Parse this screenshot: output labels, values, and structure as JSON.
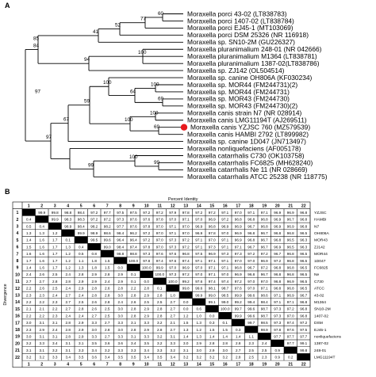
{
  "panel_a_label": "A",
  "panel_b_label": "B",
  "tree": {
    "taxa": [
      "Moraxella porci 43-02 (LT838783)",
      "Moraxella porci 1407-02 (LT838784)",
      "Moraxella porci EJ45-1 (MT103069)",
      "Moraxella porci DSM 25326 (NR 116918)",
      "Moraxella sp. SN10-2M (GU226327)",
      "Moraxella pluranimalium 248-01 (NR 042666)",
      "Moraxella pluranimalium M1364 (LT838781)",
      "Moraxella pluranimalium 1387-02(LT838786)",
      "Moraxella sp. ZJ142 (OL504514)",
      "Moraxella sp. canine OH806A (KF030234)",
      "Moraxella sp. MOR44 (FM244731)(2)",
      "Moraxella sp. MOR44 (FM244731)",
      "Moraxella sp. MOR43 (FM244730)",
      "Moraxella sp. MOR43 (FM244730)(2)",
      "Moraxella canis strain N7 (NR 028914)",
      "Moraxella canis LMG11194T (AJ269511)",
      "Moraxella canis YZJSC 760 (MZ579539)",
      "Moraxella canis HAMBI 2792 (LT899982)",
      "Moraxella sp. canine 1D047 (JN713497)",
      "Moraxella nonliquefaciens (AF005178)",
      "Moraxella catarrhalis C730 (OK103758)",
      "Moraxella catarrhalis FC6825 (MH628240)",
      "Moraxella catarrhalis Ne 11 (NR 028669)",
      "Moraxella catarrhalis ATCC 25238 (NR 118775)"
    ],
    "bootstrap": [
      "60",
      "77",
      "52",
      "41",
      "100",
      "94",
      "85",
      "84",
      "97",
      "100",
      "64",
      "69",
      "100",
      "100",
      "69",
      "100",
      "59",
      "97",
      "99",
      "100",
      "99",
      "67"
    ],
    "marker_color": "#e8191d"
  },
  "matrix": {
    "top_title": "Percent Identity",
    "side_title": "Divergence",
    "numbers": [
      "1",
      "2",
      "3",
      "4",
      "5",
      "6",
      "7",
      "8",
      "9",
      "10",
      "11",
      "12",
      "13",
      "14",
      "15",
      "16",
      "17",
      "18",
      "19",
      "20",
      "21",
      "22"
    ],
    "abbrev": [
      "YZJSC",
      "HAMBI",
      "N7",
      "OH806A",
      "MOR43",
      "ZJ142",
      "MOR44",
      "1D047",
      "FC6825",
      "Ne",
      "C730",
      "ATCC",
      "43-02",
      "M1364",
      "SN10-2M",
      "1407-02",
      "DSM",
      "EJ45-1",
      "nonliquefaciens",
      "1387-02",
      "248-01",
      "LMG11194T"
    ],
    "rows": [
      [
        "",
        "99.9",
        "99.8",
        "98.8",
        "98.4",
        "97.2",
        "97.7",
        "97.5",
        "97.5",
        "97.2",
        "97.2",
        "97.9",
        "97.8",
        "97.2",
        "97.2",
        "97.1",
        "97.0",
        "97.1",
        "97.1",
        "96.9",
        "96.9",
        "96.8"
      ],
      [
        "0.4",
        "",
        "99.9",
        "98.3",
        "98.3",
        "97.2",
        "97.2",
        "97.3",
        "97.6",
        "97.6",
        "97.8",
        "97.0",
        "97.1",
        "97.0",
        "96.9",
        "97.2",
        "96.8",
        "96.8",
        "96.8",
        "96.9",
        "96.7",
        "96.8"
      ],
      [
        "0.5",
        "0.4",
        "",
        "98.9",
        "98.4",
        "98.2",
        "98.2",
        "97.7",
        "97.6",
        "97.8",
        "97.0",
        "97.1",
        "97.0",
        "96.9",
        "96.8",
        "96.9",
        "96.9",
        "96.7",
        "96.8",
        "96.9",
        "96.9",
        "96.8"
      ],
      [
        "1.3",
        "1.3",
        "1.2",
        "",
        "99.9",
        "98.9",
        "98.6",
        "98.4",
        "96.2",
        "97.2",
        "97.0",
        "97.1",
        "97.0",
        "96.9",
        "97.8",
        "97.0",
        "96.9",
        "96.8",
        "96.7",
        "96.8",
        "96.8",
        "96.5"
      ],
      [
        "1.4",
        "1.6",
        "1.7",
        "0.1",
        "",
        "99.5",
        "99.6",
        "96.4",
        "96.4",
        "97.2",
        "97.0",
        "97.3",
        "97.2",
        "97.1",
        "97.0",
        "97.1",
        "96.9",
        "96.8",
        "96.7",
        "96.8",
        "96.5",
        "96.3"
      ],
      [
        "1.5",
        "1.6",
        "1.7",
        "1.3",
        "0.4",
        "",
        "99.0",
        "98.4",
        "97.4",
        "97.8",
        "97.0",
        "97.3",
        "97.2",
        "97.1",
        "97.3",
        "97.1",
        "97.1",
        "96.7",
        "96.7",
        "96.9",
        "96.5",
        "96.3"
      ],
      [
        "1.6",
        "1.6",
        "1.7",
        "1.2",
        "0.5",
        "0.8",
        "",
        "98.8",
        "98.8",
        "97.3",
        "97.6",
        "97.6",
        "96.8",
        "97.5",
        "96.9",
        "97.3",
        "97.3",
        "97.2",
        "97.2",
        "96.7",
        "96.8",
        "96.5"
      ],
      [
        "1.7",
        "1.6",
        "1.7",
        "1.2",
        "1.1",
        "1.8",
        "1.5",
        "",
        "100.0",
        "97.8",
        "97.4",
        "97.6",
        "97.4",
        "97.1",
        "97.1",
        "97.1",
        "97.0",
        "97.0",
        "96.9",
        "97.2",
        "96.8",
        "96.5"
      ],
      [
        "1.4",
        "1.6",
        "1.7",
        "1.2",
        "1.3",
        "1.8",
        "1.5",
        "0.0",
        "",
        "100.0",
        "99.9",
        "97.0",
        "96.9",
        "97.0",
        "97.1",
        "97.1",
        "96.8",
        "96.7",
        "97.2",
        "96.8",
        "96.8",
        "96.5"
      ],
      [
        "2.4",
        "2.6",
        "2.5",
        "2.4",
        "2.8",
        "2.9",
        "2.8",
        "2.9",
        "0.1",
        "",
        "100.0",
        "97.3",
        "97.2",
        "97.0",
        "97.1",
        "97.0",
        "96.9",
        "96.8",
        "96.7",
        "96.8",
        "96.8",
        "96.5"
      ],
      [
        "2.7",
        "2.7",
        "2.8",
        "2.8",
        "2.9",
        "2.9",
        "2.4",
        "2.9",
        "0.1",
        "0.0",
        "",
        "100.0",
        "99.2",
        "97.6",
        "97.4",
        "97.4",
        "97.2",
        "97.0",
        "97.0",
        "96.8",
        "96.9",
        "96.5"
      ],
      [
        "2.2",
        "2.6",
        "2.5",
        "2.4",
        "2.9",
        "2.8",
        "2.6",
        "2.8",
        "2.2",
        "2.8",
        "0.1",
        "",
        "99.8",
        "99.6",
        "98.1",
        "98.7",
        "97.6",
        "97.0",
        "97.1",
        "96.8",
        "96.8",
        "96.5"
      ],
      [
        "2.3",
        "2.3",
        "2.4",
        "2.7",
        "2.4",
        "2.8",
        "2.8",
        "3.0",
        "2.8",
        "2.9",
        "2.8",
        "1.0",
        "",
        "99.9",
        "99.0",
        "98.5",
        "99.9",
        "99.6",
        "98.6",
        "97.1",
        "96.9",
        "96.7"
      ],
      [
        "2.2",
        "2.2",
        "2.3",
        "2.7",
        "2.5",
        "2.6",
        "2.8",
        "2.4",
        "2.6",
        "2.5",
        "2.5",
        "2.7",
        "0.0",
        "",
        "99.1",
        "99.0",
        "99.2",
        "99.4",
        "98.4",
        "97.1",
        "97.1",
        "96.8"
      ],
      [
        "2.1",
        "2.1",
        "2.2",
        "2.7",
        "2.8",
        "2.6",
        "2.5",
        "3.0",
        "2.8",
        "2.9",
        "2.8",
        "2.7",
        "0.0",
        "0.6",
        "",
        "100.0",
        "99.7",
        "99.6",
        "98.7",
        "97.3",
        "97.2",
        "96.8"
      ],
      [
        "2.2",
        "2.2",
        "2.3",
        "2.4",
        "2.4",
        "2.7",
        "2.5",
        "3.0",
        "2.8",
        "2.9",
        "2.8",
        "2.7",
        "1.2",
        "1.0",
        "0.0",
        "",
        "99.9",
        "99.6",
        "98.7",
        "97.3",
        "97.0",
        "96.8"
      ],
      [
        "3.0",
        "3.1",
        "3.1",
        "2.8",
        "2.9",
        "3.3",
        "2.7",
        "3.3",
        "3.1",
        "3.3",
        "3.2",
        "2.1",
        "1.5",
        "1.3",
        "0.3",
        "0.1",
        "",
        "99.7",
        "98.5",
        "97.3",
        "97.4",
        "97.2"
      ],
      [
        "2.3",
        "2.9",
        "2.4",
        "2.8",
        "2.9",
        "3.0",
        "2.8",
        "3.0",
        "2.8",
        "2.9",
        "2.8",
        "2.7",
        "1.3",
        "1.2",
        "1.5",
        "1.5",
        "0.3",
        "",
        "98.9",
        "97.8",
        "97.6",
        "97.5"
      ],
      [
        "3.0",
        "3.1",
        "3.1",
        "2.8",
        "2.9",
        "3.3",
        "2.7",
        "3.3",
        "3.1",
        "3.3",
        "3.2",
        "3.1",
        "1.4",
        "1.3",
        "1.4",
        "1.4",
        "1.4",
        "1.1",
        "",
        "97.7",
        "97.7",
        "97.7"
      ],
      [
        "3.2",
        "3.3",
        "3.4",
        "3.1",
        "3.1",
        "3.5",
        "3.6",
        "3.6",
        "3.4",
        "3.5",
        "3.2",
        "3.3",
        "3.0",
        "2.9",
        "2.8",
        "2.8",
        "2.8",
        "2.3",
        "2.4",
        "",
        "97.7",
        "99.1"
      ],
      [
        "3.1",
        "3.1",
        "3.2",
        "3.1",
        "3.3",
        "3.4",
        "3.2",
        "3.3",
        "3.3",
        "3.4",
        "3.3",
        "3.2",
        "3.1",
        "3.0",
        "2.9",
        "3.0",
        "2.7",
        "2.5",
        "2.5",
        "0.9",
        "",
        "99.8"
      ],
      [
        "3.2",
        "3.2",
        "3.3",
        "3.4",
        "3.5",
        "3.6",
        "3.4",
        "3.5",
        "3.5",
        "3.4",
        "3.5",
        "3.4",
        "3.2",
        "3.2",
        "3.2",
        "3.2",
        "2.8",
        "2.5",
        "2.3",
        "0.9",
        "0.2",
        ""
      ]
    ]
  }
}
